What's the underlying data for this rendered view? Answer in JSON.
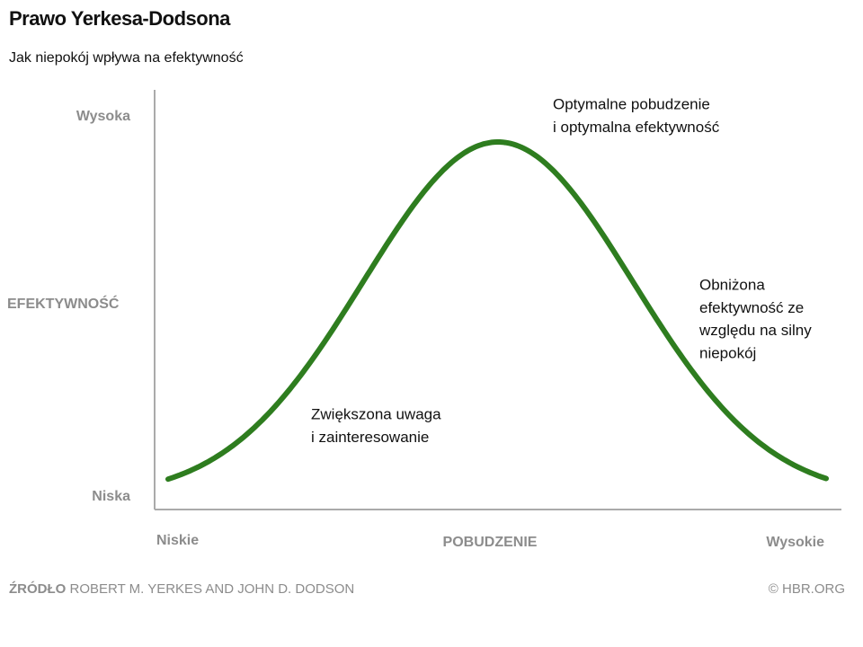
{
  "chart_data": {
    "type": "curve",
    "title": "Prawo Yerkesa-Dodsona",
    "subtitle": "Jak niepokój wpływa na efektywność",
    "y_label": "EFEKTYWNOŚĆ",
    "y_high": "Wysoka",
    "y_low": "Niska",
    "x_label": "POBUDZENIE",
    "x_low": "Niskie",
    "x_high": "Wysokie",
    "color": "#2e7d1f",
    "annotations": [
      [
        "Optymalne pobudzenie",
        "i optymalna efektywność"
      ],
      [
        "Obniżona",
        "efektywność ze",
        "względu na silny",
        "niepokój"
      ],
      [
        "Zwiększona uwaga",
        "i zainteresowanie"
      ]
    ],
    "source_label": "ŹRÓDŁO",
    "source_text": "ROBERT M. YERKES AND JOHN D. DODSON",
    "copyright": "© HBR.ORG"
  }
}
